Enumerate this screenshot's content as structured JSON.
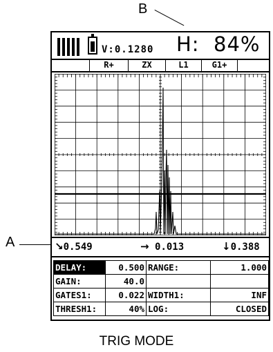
{
  "callouts": {
    "b": "B",
    "a": "A"
  },
  "status": {
    "signal_bars": 5,
    "battery_level": 0.85,
    "velocity": "V:0.1280",
    "h_reading": "H:  84%"
  },
  "tabs": [
    "",
    "R+",
    "ZX",
    "L1",
    "G1+",
    ""
  ],
  "readout": {
    "down_right_arrow": "↘",
    "thickness": "0.549",
    "right_arrow": "→",
    "horizontal": "0.013",
    "down_arrow": "↓",
    "depth": "0.388"
  },
  "params": [
    {
      "label": "DELAY:",
      "value": "0.500",
      "label2": "RANGE:",
      "value2": "1.000",
      "selected": true
    },
    {
      "label": "GAIN:",
      "value": "40.0",
      "label2": "",
      "value2": ""
    },
    {
      "label": "GATES1:",
      "value": "0.022",
      "label2": "WIDTH1:",
      "value2": "INF"
    },
    {
      "label": "THRESH1:",
      "value": "40%",
      "label2": "LOG:",
      "value2": "CLOSED"
    }
  ],
  "caption": "TRIG MODE"
}
